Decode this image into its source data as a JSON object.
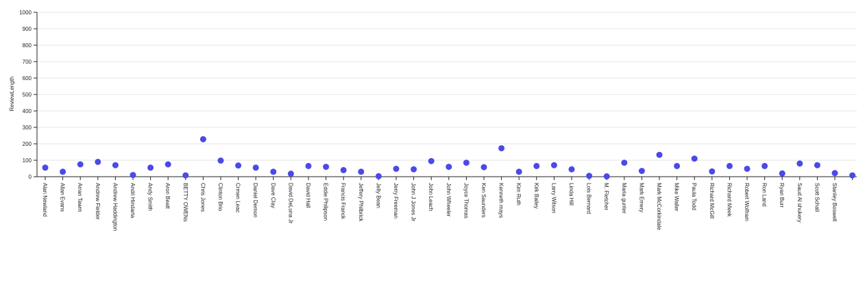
{
  "chart_data": {
    "type": "scatter",
    "title": "",
    "xlabel": "",
    "ylabel": "ReviewLength",
    "ylim": [
      0,
      1000
    ],
    "yticks": [
      0,
      100,
      200,
      300,
      400,
      500,
      600,
      700,
      800,
      900,
      1000
    ],
    "grid": true,
    "point_color": "#4a4ae8",
    "categories": [
      "Alan Newland",
      "Allan Evans",
      "Arran Tawm",
      "Andrew Fielder",
      "Andrew Haddington",
      "Andri Hindarta",
      "Andy Smith",
      "Aron Beatt",
      "BETTY OWENs",
      "Chris Jones",
      "Clinton Brio",
      "Crmen Leac",
      "Daniel Demon",
      "Dave Clay",
      "David DeLuna Jr",
      "David Hall",
      "Eddie Philipson",
      "Francis Franck",
      "Jeffery Philbrick",
      "Jelly Bean",
      "Jerry Freeman",
      "John J Jones Jr",
      "John Leach",
      "John Wheeler",
      "Joyce Thomas",
      "Ken Saunders",
      "Kenneth mays",
      "Kim Ruth",
      "Kirk Bailey",
      "Larry Wilson",
      "Linda Hill",
      "Lois Bernard",
      "M. Fletcher",
      "Maria gunter",
      "Mark Emery",
      "Mark McCorkindale",
      "Mike Waller",
      "Paula Todd",
      "Richard McGill",
      "Richard Meek",
      "Robert Wolfram",
      "Ron Land",
      "Ryan Burr",
      "Saud Al shukery",
      "Scott Schall",
      "Stanley Boswell",
      ""
    ],
    "values": [
      55,
      30,
      75,
      90,
      70,
      10,
      55,
      75,
      8,
      228,
      98,
      68,
      55,
      30,
      18,
      65,
      60,
      40,
      30,
      3,
      48,
      45,
      95,
      60,
      85,
      58,
      173,
      30,
      65,
      70,
      45,
      5,
      2,
      85,
      35,
      133,
      65,
      110,
      32,
      65,
      48,
      65,
      20,
      80,
      70,
      22,
      8
    ]
  }
}
